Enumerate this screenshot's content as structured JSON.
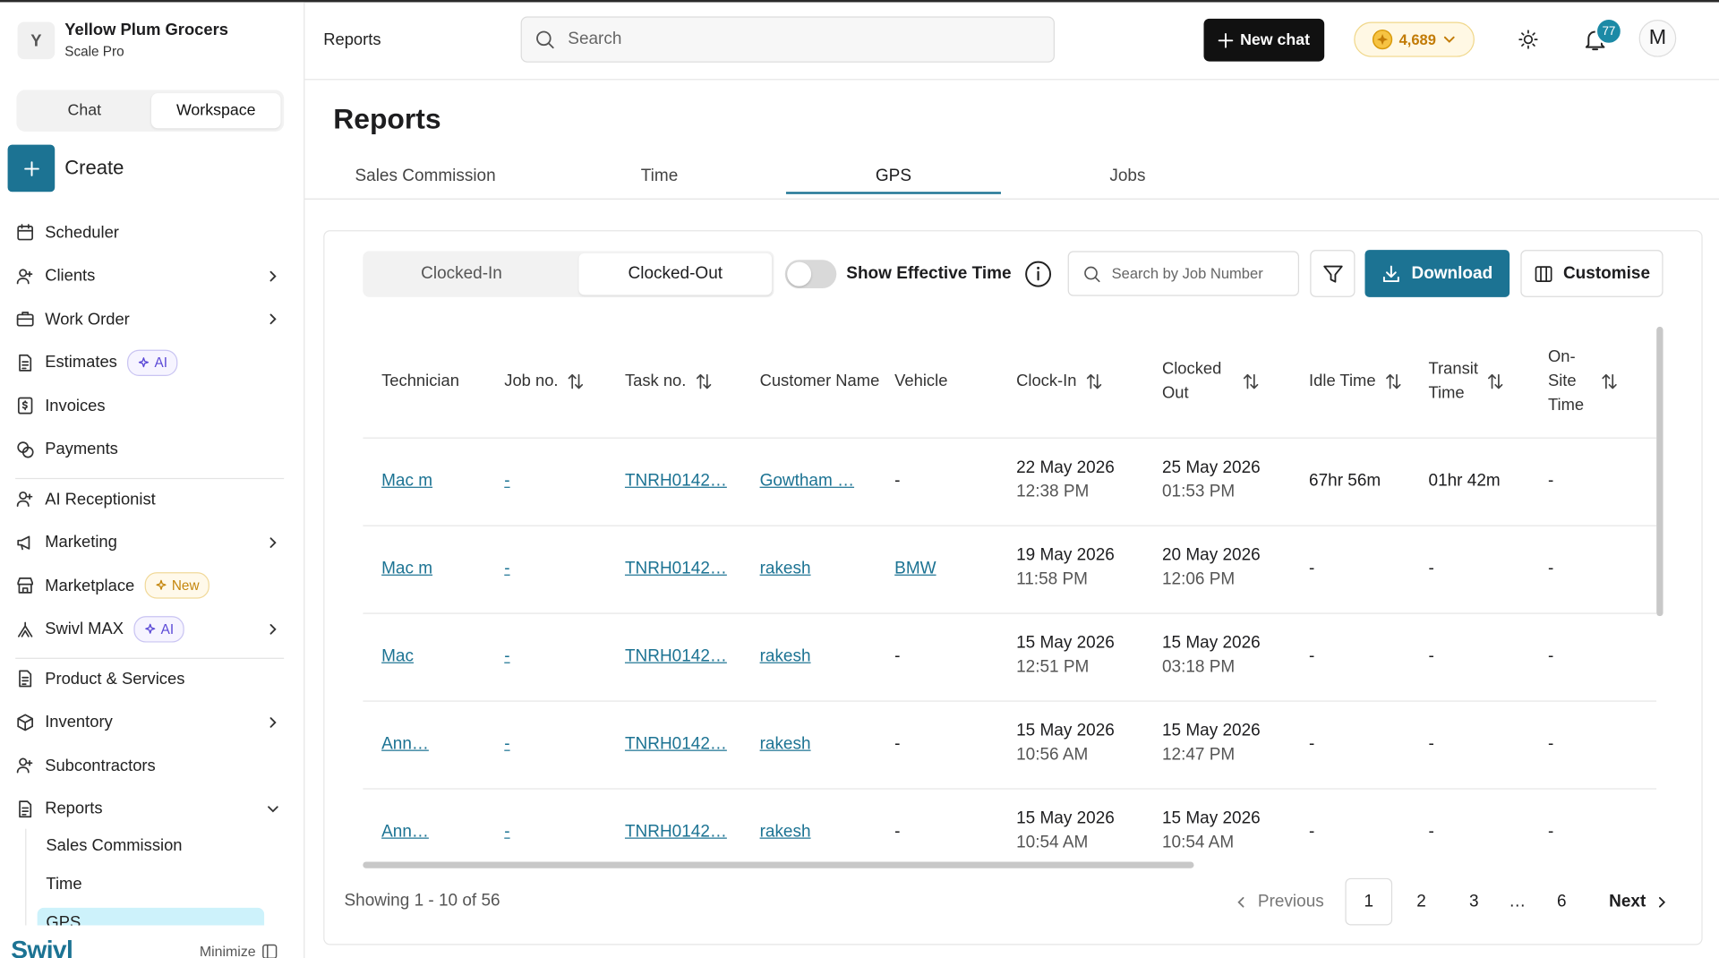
{
  "sidebar": {
    "org_initial": "Y",
    "org_name": "Yellow Plum Grocers",
    "plan": "Scale Pro",
    "modes": [
      "Chat",
      "Workspace"
    ],
    "active_mode": 1,
    "create": "Create",
    "nav_groups": [
      [
        {
          "label": "Scheduler",
          "icon": "calendar"
        },
        {
          "label": "Clients",
          "icon": "user",
          "chevron": "right"
        },
        {
          "label": "Work Order",
          "icon": "case",
          "chevron": "right"
        },
        {
          "label": "Estimates",
          "icon": "doc",
          "badge": {
            "text": "AI",
            "kind": "ai"
          }
        },
        {
          "label": "Invoices",
          "icon": "dollar"
        },
        {
          "label": "Payments",
          "icon": "coins"
        }
      ],
      [
        {
          "label": "AI Receptionist",
          "icon": "user"
        },
        {
          "label": "Marketing",
          "icon": "megaphone",
          "chevron": "right"
        },
        {
          "label": "Marketplace",
          "icon": "store",
          "badge": {
            "text": "New",
            "kind": "new"
          }
        },
        {
          "label": "Swivl MAX",
          "icon": "max",
          "badge": {
            "text": "AI",
            "kind": "ai"
          },
          "chevron": "right"
        }
      ],
      [
        {
          "label": "Product & Services",
          "icon": "doc"
        },
        {
          "label": "Inventory",
          "icon": "box",
          "chevron": "right"
        },
        {
          "label": "Subcontractors",
          "icon": "user"
        },
        {
          "label": "Reports",
          "icon": "doc",
          "chevron": "down",
          "children": [
            "Sales Commission",
            "Time",
            "GPS"
          ],
          "active_child": 2
        }
      ]
    ],
    "logo": "Swivl",
    "minimize": "Minimize"
  },
  "header": {
    "breadcrumb": "Reports",
    "search_placeholder": "Search",
    "new_chat": "New chat",
    "credits": "4,689",
    "notifications": "77",
    "avatar": "M"
  },
  "page": {
    "title": "Reports",
    "tabs": [
      "Sales Commission",
      "Time",
      "GPS",
      "Jobs"
    ],
    "active_tab": 2
  },
  "toolbar": {
    "segments": [
      "Clocked-In",
      "Clocked-Out"
    ],
    "active_segment": 1,
    "toggle_label": "Show Effective Time",
    "search_placeholder": "Search by Job Number",
    "download": "Download",
    "customise": "Customise"
  },
  "table": {
    "columns": [
      {
        "label": "Technician"
      },
      {
        "label": "Job no.",
        "sortable": true
      },
      {
        "label": "Task no.",
        "sortable": true
      },
      {
        "label": "Customer Name"
      },
      {
        "label": "Vehicle"
      },
      {
        "label": "Clock-In",
        "sortable": true
      },
      {
        "label": "Clocked Out",
        "sortable": true
      },
      {
        "label": "Idle Time",
        "sortable": true
      },
      {
        "label": "Transit Time",
        "sortable": true
      },
      {
        "label": "On-Site Time",
        "sortable": true
      }
    ],
    "rows": [
      [
        {
          "text": "Mac m",
          "link": true
        },
        {
          "text": "-",
          "link": true
        },
        {
          "text": "TNRH0142…",
          "link": true
        },
        {
          "text": "Gowtham …",
          "link": true
        },
        {
          "text": "-"
        },
        {
          "lines": [
            "22 May 2026",
            "12:38 PM"
          ]
        },
        {
          "lines": [
            "25 May 2026",
            "01:53 PM"
          ]
        },
        {
          "text": "67hr 56m"
        },
        {
          "text": "01hr 42m"
        },
        {
          "text": "-"
        }
      ],
      [
        {
          "text": "Mac m",
          "link": true
        },
        {
          "text": "-",
          "link": true
        },
        {
          "text": "TNRH0142…",
          "link": true
        },
        {
          "text": "rakesh",
          "link": true
        },
        {
          "text": "BMW",
          "link": true
        },
        {
          "lines": [
            "19 May 2026",
            "11:58 PM"
          ]
        },
        {
          "lines": [
            "20 May 2026",
            "12:06 PM"
          ]
        },
        {
          "text": "-"
        },
        {
          "text": "-"
        },
        {
          "text": "-"
        }
      ],
      [
        {
          "text": "Mac",
          "link": true
        },
        {
          "text": "-",
          "link": true
        },
        {
          "text": "TNRH0142…",
          "link": true
        },
        {
          "text": "rakesh",
          "link": true
        },
        {
          "text": "-"
        },
        {
          "lines": [
            "15 May 2026",
            "12:51 PM"
          ]
        },
        {
          "lines": [
            "15 May 2026",
            "03:18 PM"
          ]
        },
        {
          "text": "-"
        },
        {
          "text": "-"
        },
        {
          "text": "-"
        }
      ],
      [
        {
          "text": "Ann…",
          "link": true
        },
        {
          "text": "-",
          "link": true
        },
        {
          "text": "TNRH0142…",
          "link": true
        },
        {
          "text": "rakesh",
          "link": true
        },
        {
          "text": "-"
        },
        {
          "lines": [
            "15 May 2026",
            "10:56 AM"
          ]
        },
        {
          "lines": [
            "15 May 2026",
            "12:47 PM"
          ]
        },
        {
          "text": "-"
        },
        {
          "text": "-"
        },
        {
          "text": "-"
        }
      ],
      [
        {
          "text": "Ann…",
          "link": true
        },
        {
          "text": "-",
          "link": true
        },
        {
          "text": "TNRH0142…",
          "link": true
        },
        {
          "text": "rakesh",
          "link": true
        },
        {
          "text": "-"
        },
        {
          "lines": [
            "15 May 2026",
            "10:54 AM"
          ]
        },
        {
          "lines": [
            "15 May 2026",
            "10:54 AM"
          ]
        },
        {
          "text": "-"
        },
        {
          "text": "-"
        },
        {
          "text": "-"
        }
      ]
    ]
  },
  "pagination": {
    "summary": "Showing 1 - 10 of 56",
    "previous": "Previous",
    "pages": [
      "1",
      "2",
      "3",
      "…",
      "6"
    ],
    "current": 0,
    "next": "Next"
  }
}
